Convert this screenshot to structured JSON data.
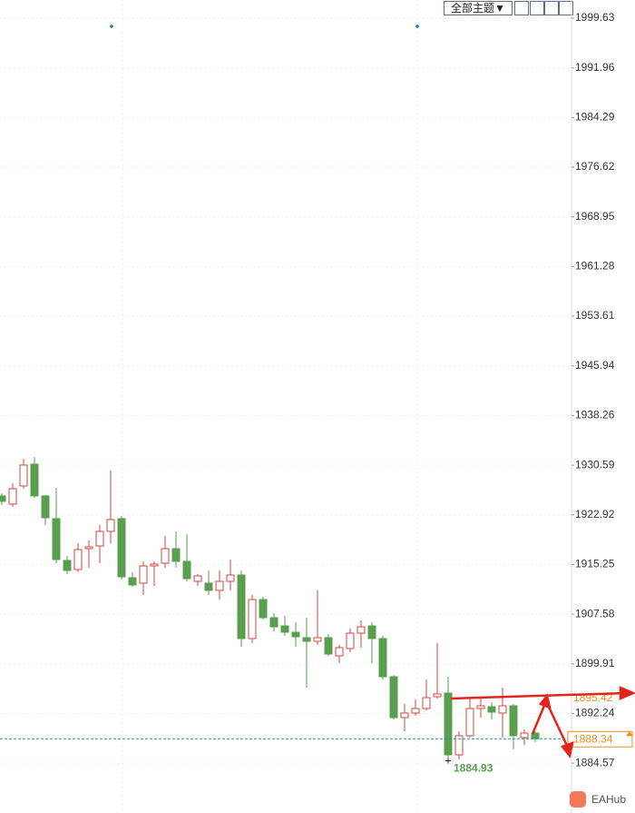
{
  "chart_data": {
    "type": "candlestick",
    "theme_button": "全部主题▼",
    "watermark": "EAHub",
    "up_color": "#d64541",
    "down_color": "#5a9f4f",
    "ylim": [
      1876.87,
      2002.44
    ],
    "yticks": [
      1999.63,
      1991.96,
      1984.29,
      1976.62,
      1968.95,
      1961.28,
      1953.61,
      1945.94,
      1938.26,
      1930.59,
      1922.92,
      1915.25,
      1907.58,
      1899.91,
      1892.24,
      1884.57
    ],
    "grid": true,
    "current_price": 1888.34,
    "level_label": 1895.42,
    "low_label": 1884.93,
    "open": [
      1925.84,
      1924.58,
      1927.38,
      1930.75,
      1925.84,
      1922.33,
      1915.88,
      1914.47,
      1917.7,
      1918.12,
      1920.37,
      1922.33,
      1913.21,
      1912.37,
      1915.03,
      1915.45,
      1917.7,
      1915.74,
      1912.65,
      1912.37,
      1911.25,
      1912.65,
      1913.63,
      1903.81,
      1909.84,
      1907.04,
      1905.77,
      1904.79,
      1903.95,
      1903.39,
      1903.95,
      1901.14,
      1902.27,
      1904.65,
      1905.77,
      1903.81,
      1897.92,
      1891.6,
      1892.31,
      1893.01,
      1894.83,
      1895.39,
      1885.85,
      1888.8,
      1893.01,
      1893.29,
      1892.31,
      1893.43,
      1888.52,
      1889.22
    ],
    "high": [
      1926.26,
      1927.8,
      1931.59,
      1931.87,
      1925.98,
      1927.1,
      1916.58,
      1918.54,
      1918.96,
      1921.35,
      1929.77,
      1922.75,
      1914.05,
      1915.74,
      1915.74,
      1919.66,
      1920.37,
      1919.94,
      1913.77,
      1914.33,
      1914.33,
      1916.02,
      1914.33,
      1910.54,
      1910.26,
      1907.74,
      1907.32,
      1906.33,
      1907.04,
      1911.25,
      1904.51,
      1902.83,
      1905.35,
      1906.61,
      1906.33,
      1904.23,
      1898.2,
      1893.71,
      1894.41,
      1897.5,
      1903.11,
      1897.92,
      1889.5,
      1894.69,
      1894.69,
      1893.99,
      1896.23,
      1893.71,
      1889.78,
      1889.5
    ],
    "low": [
      1924.44,
      1924.15,
      1926.96,
      1925.56,
      1921.35,
      1915.45,
      1913.77,
      1914.05,
      1914.75,
      1915.45,
      1918.54,
      1912.93,
      1911.81,
      1910.54,
      1911.95,
      1914.75,
      1914.75,
      1912.65,
      1911.95,
      1910.54,
      1909.84,
      1911.25,
      1902.55,
      1903.11,
      1906.76,
      1904.93,
      1904.23,
      1902.55,
      1896.23,
      1902.83,
      1901.14,
      1900.02,
      1901.7,
      1902.41,
      1900.02,
      1897.5,
      1891.32,
      1889.5,
      1891.88,
      1892.73,
      1894.55,
      1884.93,
      1885.1,
      1888.52,
      1891.6,
      1891.32,
      1888.52,
      1886.69,
      1887.39,
      1887.81
    ],
    "close": [
      1925.0,
      1926.96,
      1930.61,
      1925.84,
      1922.47,
      1916.02,
      1914.33,
      1917.56,
      1917.98,
      1920.37,
      1922.19,
      1913.35,
      1912.09,
      1915.03,
      1915.31,
      1917.7,
      1915.74,
      1913.07,
      1913.49,
      1911.25,
      1912.65,
      1913.63,
      1903.81,
      1909.84,
      1907.04,
      1905.63,
      1904.79,
      1904.09,
      1903.39,
      1903.95,
      1901.42,
      1902.41,
      1904.65,
      1905.63,
      1903.81,
      1897.92,
      1891.6,
      1892.31,
      1893.01,
      1894.69,
      1895.25,
      1885.85,
      1888.8,
      1893.01,
      1893.43,
      1892.45,
      1893.43,
      1888.8,
      1889.22,
      1888.34
    ]
  }
}
